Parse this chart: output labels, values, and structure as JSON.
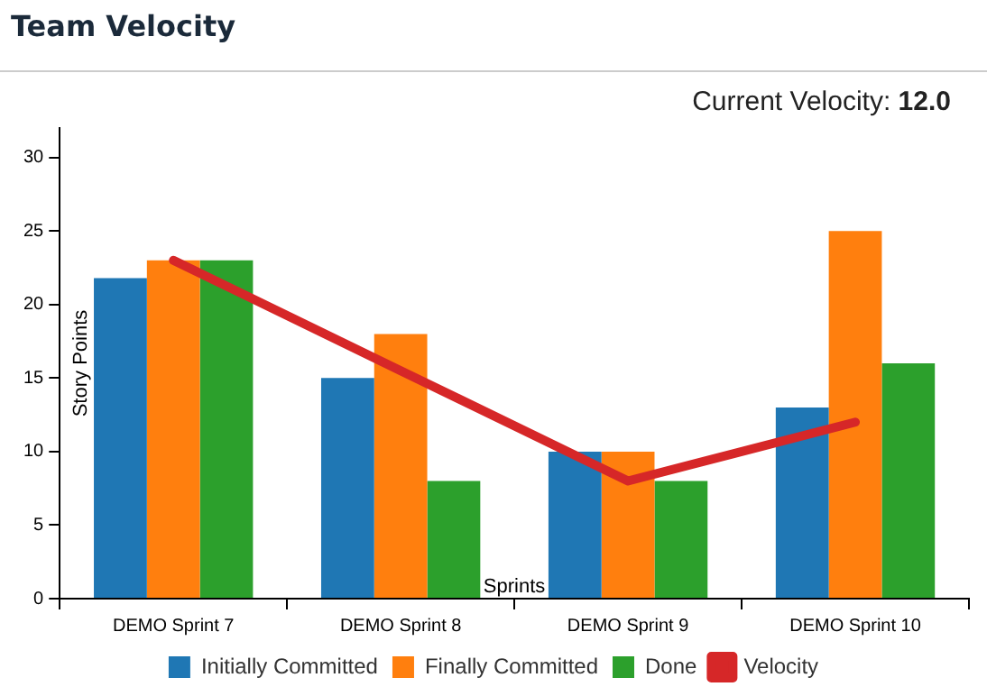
{
  "chart_data": {
    "type": "bar",
    "title": "Team Velocity",
    "annotations": [
      "Current Velocity: 12.0"
    ],
    "xlabel": "Sprints",
    "ylabel": "Story Points",
    "categories": [
      "DEMO Sprint 7",
      "DEMO Sprint 8",
      "DEMO Sprint 9",
      "DEMO Sprint 10"
    ],
    "series": [
      {
        "name": "Initially Committed",
        "color": "#1f77b4",
        "values": [
          21.8,
          15,
          10,
          13
        ]
      },
      {
        "name": "Finally Committed",
        "color": "#ff7f0e",
        "values": [
          23,
          18,
          10,
          25
        ]
      },
      {
        "name": "Done",
        "color": "#2ca02c",
        "values": [
          23,
          8,
          8,
          16
        ]
      },
      {
        "name": "Velocity",
        "type": "line",
        "color": "#d62728",
        "values": [
          23,
          15.5,
          8,
          12
        ]
      }
    ],
    "ylim": [
      0,
      32
    ],
    "yticks": [
      0,
      5,
      10,
      15,
      20,
      25,
      30
    ],
    "grid": false,
    "legend": "bottom",
    "marker": "none"
  }
}
